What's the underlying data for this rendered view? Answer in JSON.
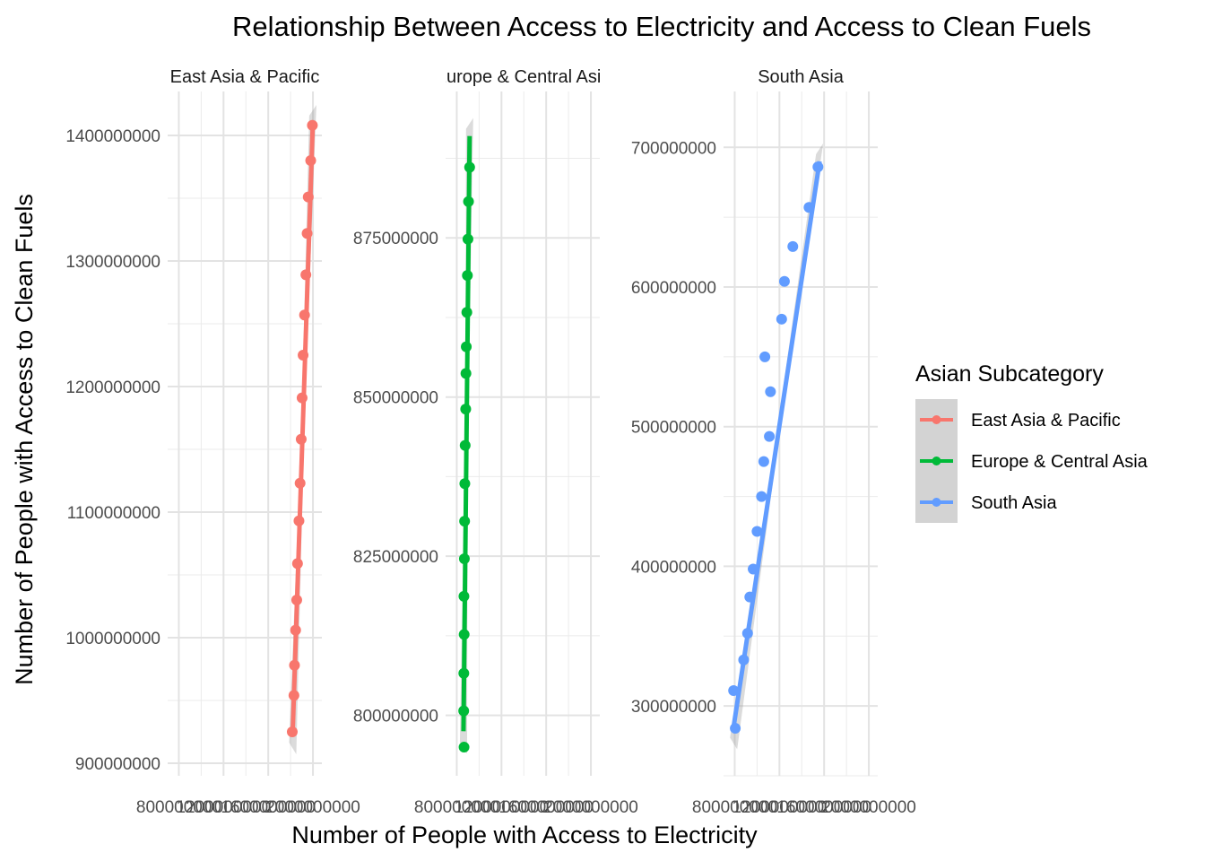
{
  "chart_data": {
    "type": "line",
    "title": "Relationship Between Access to Electricity and Access to Clean Fuels",
    "xlabel": "Number of People with Access to Electricity",
    "ylabel": "Number of People with Access to Clean Fuels",
    "legend": {
      "title": "Asian Subcategory",
      "placement": "right",
      "items": [
        "East Asia & Pacific",
        "Europe & Central Asia",
        "South Asia"
      ]
    },
    "colors": {
      "East Asia & Pacific": "#F8766D",
      "Europe & Central Asia": "#00BA38",
      "South Asia": "#619CFF"
    },
    "grid": true,
    "shared_x": {
      "tick_labels": [
        "800000000",
        "1200000000",
        "1600000000",
        "2000000000"
      ],
      "ticks": [
        800000000,
        1200000000,
        1600000000,
        2000000000
      ],
      "xlim": [
        700000000,
        2080000000
      ]
    },
    "panels": [
      {
        "strip_label": "East Asia & Pacific",
        "series": "East Asia & Pacific",
        "ylim": [
          890000000,
          1435000000
        ],
        "y_ticks": [
          900000000,
          1000000000,
          1100000000,
          1200000000,
          1300000000,
          1400000000
        ],
        "y_tick_labels": [
          "900000000",
          "1000000000",
          "1100000000",
          "1200000000",
          "1300000000",
          "1400000000"
        ],
        "fit": {
          "x0": 1819000000,
          "y0": 925000000,
          "x1": 1999000000,
          "y1": 1410000000
        },
        "points": [
          [
            1815000000,
            925000000
          ],
          [
            1830000000,
            954000000
          ],
          [
            1835000000,
            978000000
          ],
          [
            1845000000,
            1006000000
          ],
          [
            1855000000,
            1030000000
          ],
          [
            1862000000,
            1059000000
          ],
          [
            1875000000,
            1093000000
          ],
          [
            1885000000,
            1123000000
          ],
          [
            1895000000,
            1158000000
          ],
          [
            1903000000,
            1191000000
          ],
          [
            1912000000,
            1225000000
          ],
          [
            1925000000,
            1257000000
          ],
          [
            1937000000,
            1289000000
          ],
          [
            1948000000,
            1322000000
          ],
          [
            1958000000,
            1351000000
          ],
          [
            1980000000,
            1380000000
          ],
          [
            1995000000,
            1408000000
          ]
        ]
      },
      {
        "strip_label": "Europe & Central Asia",
        "series": "Europe & Central Asia",
        "ylim": [
          790500000,
          898000000
        ],
        "y_ticks": [
          800000000,
          825000000,
          850000000,
          875000000
        ],
        "y_tick_labels": [
          "800000000",
          "825000000",
          "850000000",
          "875000000"
        ],
        "fit": {
          "x0": 860000000,
          "y0": 797500000,
          "x1": 915000000,
          "y1": 891000000
        },
        "points": [
          [
            865000000,
            795000000
          ],
          [
            862000000,
            800700000
          ],
          [
            863000000,
            806600000
          ],
          [
            866000000,
            812700000
          ],
          [
            864000000,
            818700000
          ],
          [
            868000000,
            824600000
          ],
          [
            870000000,
            830500000
          ],
          [
            872000000,
            836400000
          ],
          [
            875000000,
            842400000
          ],
          [
            880000000,
            848100000
          ],
          [
            882000000,
            853700000
          ],
          [
            885000000,
            857900000
          ],
          [
            890000000,
            863300000
          ],
          [
            895000000,
            869100000
          ],
          [
            900000000,
            874800000
          ],
          [
            905000000,
            880700000
          ],
          [
            915000000,
            886100000
          ]
        ]
      },
      {
        "strip_label": "South Asia",
        "series": "South Asia",
        "ylim": [
          250000000,
          740000000
        ],
        "y_ticks": [
          300000000,
          400000000,
          500000000,
          600000000,
          700000000
        ],
        "y_tick_labels": [
          "300000000",
          "400000000",
          "500000000",
          "600000000",
          "700000000"
        ],
        "fit": {
          "x0": 790000000,
          "y0": 285000000,
          "x1": 1560000000,
          "y1": 690000000
        },
        "points": [
          [
            790000000,
            311000000
          ],
          [
            805000000,
            284000000
          ],
          [
            880000000,
            333000000
          ],
          [
            915000000,
            352000000
          ],
          [
            935000000,
            378000000
          ],
          [
            965000000,
            398000000
          ],
          [
            1000000000,
            425000000
          ],
          [
            1040000000,
            450000000
          ],
          [
            1060000000,
            475000000
          ],
          [
            1070000000,
            550000000
          ],
          [
            1110000000,
            493000000
          ],
          [
            1120000000,
            525000000
          ],
          [
            1220000000,
            577000000
          ],
          [
            1245000000,
            604000000
          ],
          [
            1320000000,
            629000000
          ],
          [
            1465000000,
            657000000
          ],
          [
            1545000000,
            686000000
          ]
        ]
      }
    ]
  }
}
